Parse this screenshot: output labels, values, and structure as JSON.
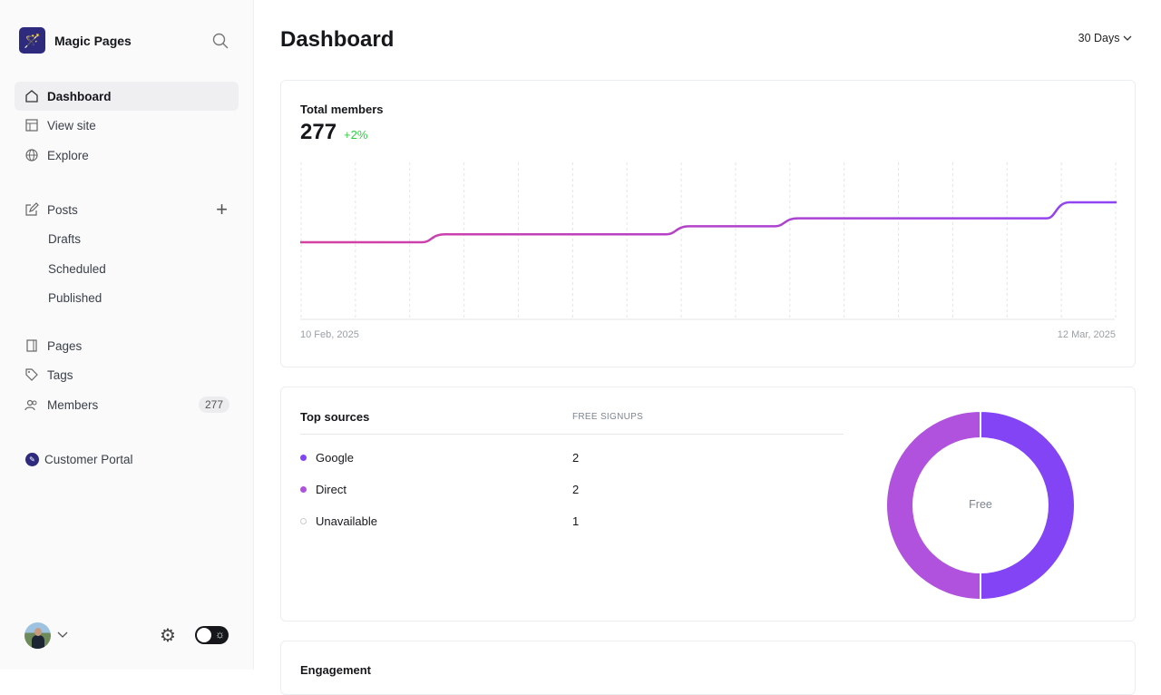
{
  "sidebar": {
    "brand": "Magic Pages",
    "nav": [
      "Dashboard",
      "View site",
      "Explore"
    ],
    "posts": "Posts",
    "post_sub": [
      "Drafts",
      "Scheduled",
      "Published"
    ],
    "more": [
      "Pages",
      "Tags",
      "Members"
    ],
    "members_count": "277",
    "portal": "Customer Portal"
  },
  "header": {
    "title": "Dashboard",
    "range": "30 Days"
  },
  "members": {
    "title": "Total members",
    "value": "277",
    "change": "+2%",
    "date_start": "10 Feb, 2025",
    "date_end": "12 Mar, 2025"
  },
  "sources": {
    "title": "Top sources",
    "col": "FREE SIGNUPS",
    "rows": [
      {
        "name": "Google",
        "value": "2",
        "color": "#8344f5"
      },
      {
        "name": "Direct",
        "value": "2",
        "color": "#b052dd"
      },
      {
        "name": "Unavailable",
        "value": "1",
        "color": "#ffffff"
      }
    ],
    "donut_label": "Free"
  },
  "engagement": {
    "title": "Engagement"
  },
  "chart_data": {
    "type": "line",
    "x": [
      "2025-02-10",
      "2025-02-15",
      "2025-02-24",
      "2025-02-28",
      "2025-03-10",
      "2025-03-12"
    ],
    "values": [
      272,
      273,
      274,
      275,
      277,
      277
    ],
    "xlabel": "",
    "ylabel": "",
    "grid": "vertical dashed"
  },
  "colors": {
    "accent": "#8344f5",
    "line_start": "#d6409f",
    "line_end": "#8e44f5",
    "positive": "#30cf43"
  }
}
